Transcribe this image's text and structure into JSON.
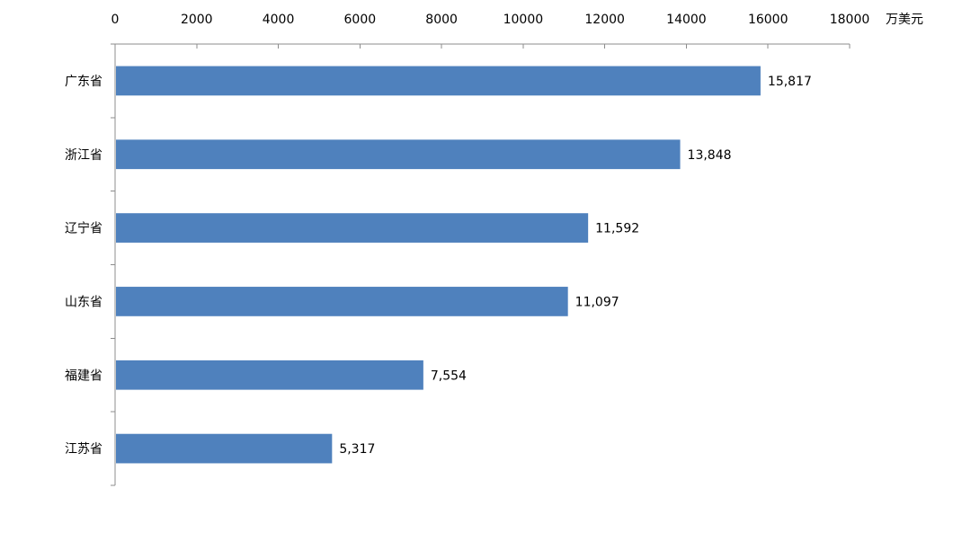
{
  "chart_data": {
    "type": "bar",
    "orientation": "horizontal",
    "x_axis_position": "top",
    "unit": "万美元",
    "categories": [
      "广东省",
      "浙江省",
      "辽宁省",
      "山东省",
      "福建省",
      "江苏省"
    ],
    "values": [
      15817,
      13848,
      11592,
      11097,
      7554,
      5317
    ],
    "data_labels": [
      "15,817",
      "13,848",
      "11,592",
      "11,097",
      "7,554",
      "5,317"
    ],
    "xlim": [
      0,
      18000
    ],
    "x_ticks": [
      0,
      2000,
      4000,
      6000,
      8000,
      10000,
      12000,
      14000,
      16000,
      18000
    ],
    "x_tick_labels": [
      "0",
      "2000",
      "4000",
      "6000",
      "8000",
      "10000",
      "12000",
      "14000",
      "16000",
      "18000"
    ],
    "grid": false,
    "bar_color": "#4f81bd",
    "legend": "none"
  }
}
